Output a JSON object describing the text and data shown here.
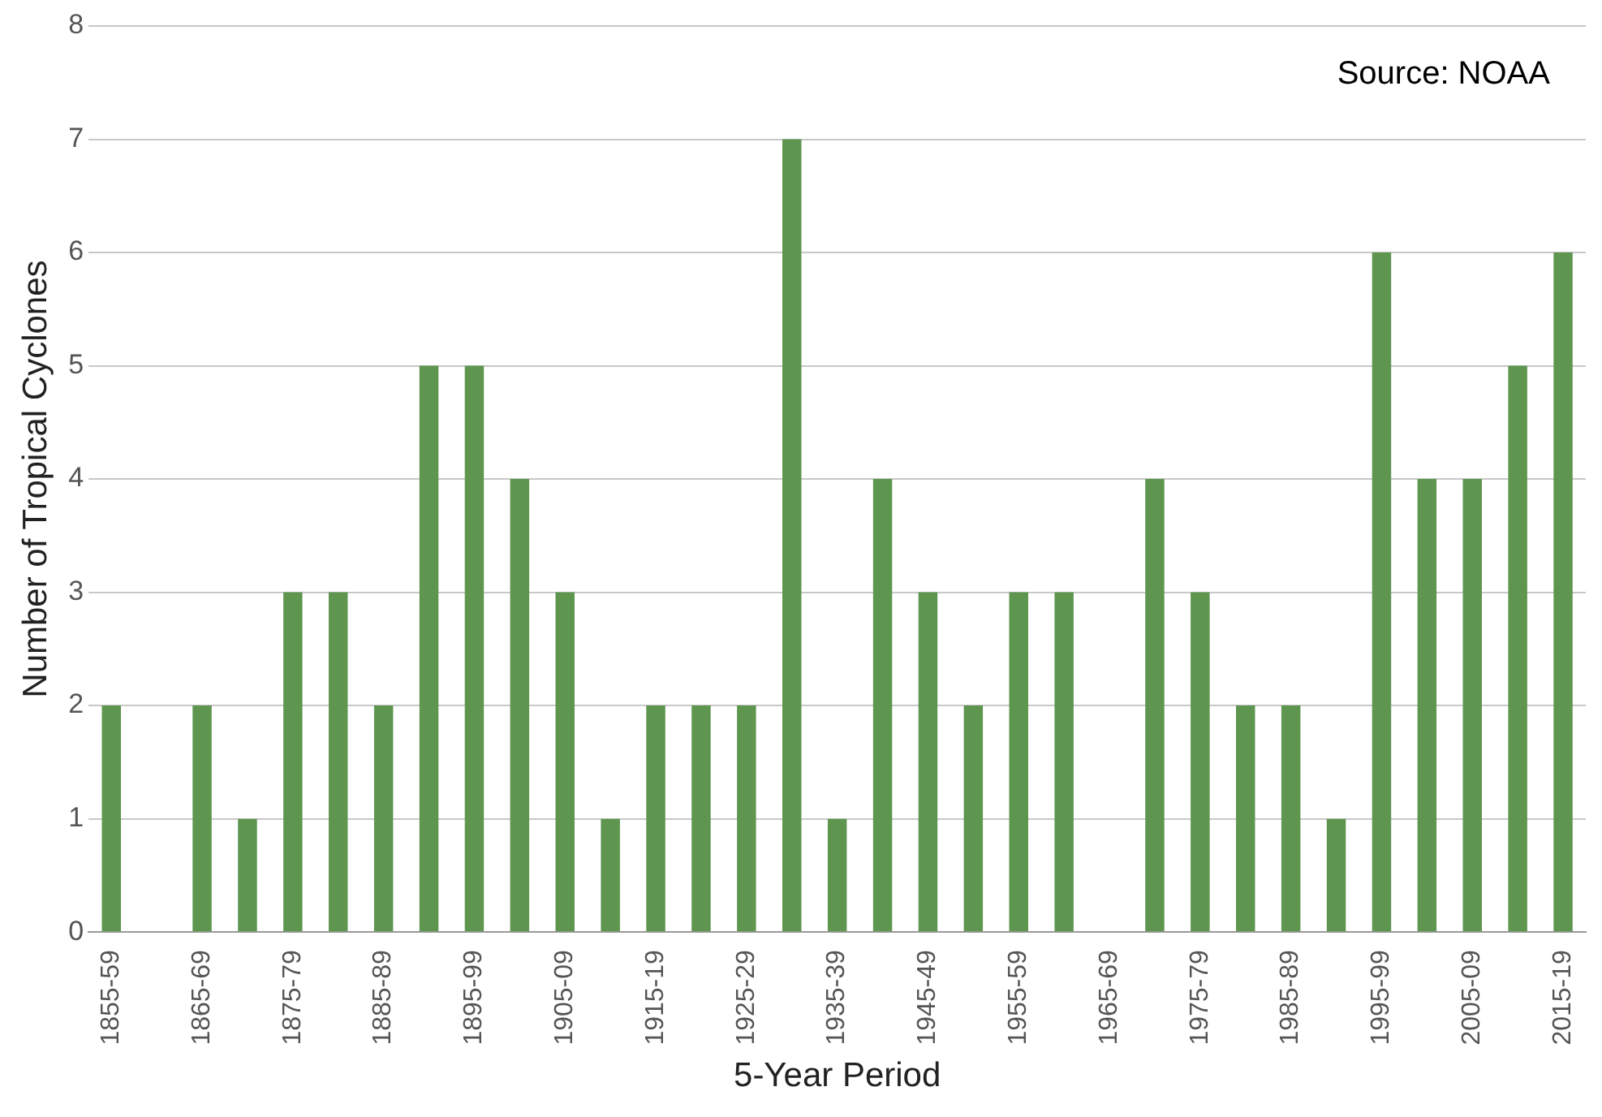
{
  "chart_data": {
    "type": "bar",
    "xlabel": "5-Year Period",
    "ylabel": "Number of Tropical Cyclones",
    "annotations": [
      "Source: NOAA"
    ],
    "categories": [
      "1855-59",
      null,
      "1865-69",
      null,
      "1875-79",
      null,
      "1885-89",
      null,
      "1895-99",
      null,
      "1905-09",
      null,
      "1915-19",
      null,
      "1925-29",
      null,
      "1935-39",
      null,
      "1945-49",
      null,
      "1955-59",
      null,
      "1965-69",
      null,
      "1975-79",
      null,
      "1985-89",
      null,
      "1995-99",
      null,
      "2005-09",
      null,
      "2015-19"
    ],
    "values": [
      2,
      0,
      2,
      1,
      3,
      3,
      2,
      5,
      5,
      4,
      3,
      1,
      2,
      2,
      2,
      7,
      1,
      4,
      3,
      2,
      3,
      3,
      0,
      4,
      3,
      2,
      2,
      1,
      6,
      4,
      4,
      5,
      6
    ],
    "color": "#5e9650",
    "ylim": [
      0,
      8
    ],
    "yticks": [
      0,
      1,
      2,
      3,
      4,
      5,
      6,
      7,
      8
    ],
    "grid": "y",
    "legend": false
  }
}
